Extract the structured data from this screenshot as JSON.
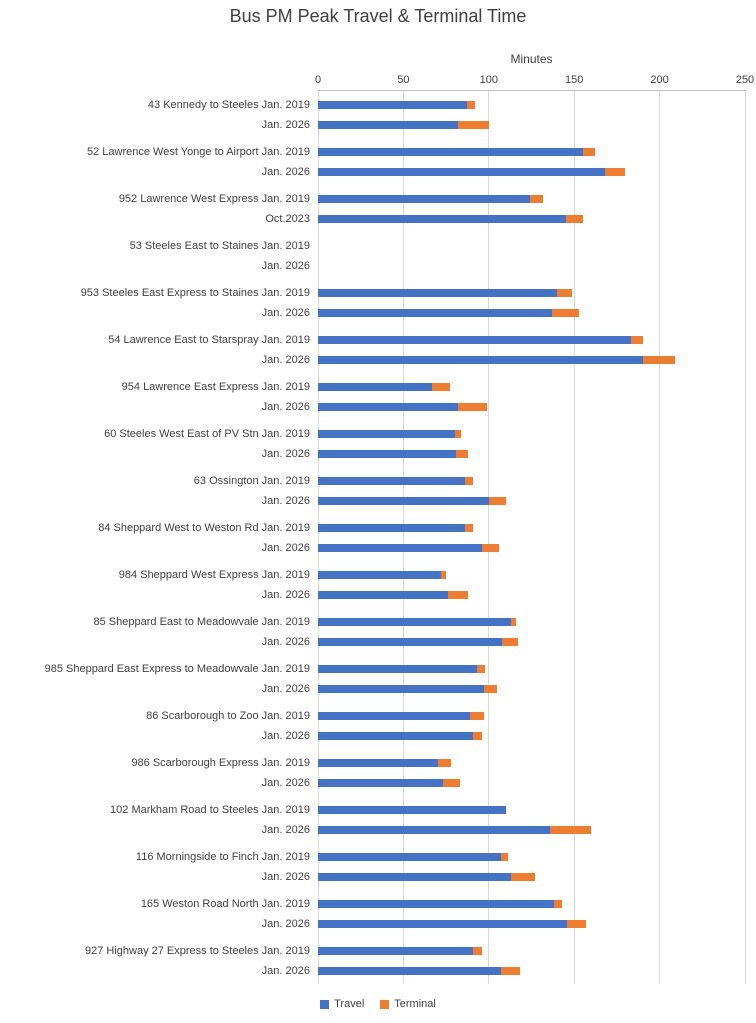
{
  "chart_data": {
    "type": "bar",
    "orientation": "horizontal",
    "stacked": true,
    "title": "Bus PM Peak Travel & Terminal Time",
    "axis_title": "Minutes",
    "xlabel": "Minutes",
    "ylabel": "",
    "xlim": [
      0,
      250
    ],
    "xticks": [
      0,
      50,
      100,
      150,
      200,
      250
    ],
    "grid": true,
    "legend_position": "bottom",
    "legend": [
      {
        "name": "Travel",
        "color": "#4472C4"
      },
      {
        "name": "Terminal",
        "color": "#ED7D31"
      }
    ],
    "groups": [
      {
        "route": "43 Kennedy to Steeles",
        "bars": [
          {
            "period": "Jan. 2019",
            "travel": 87,
            "terminal": 5
          },
          {
            "period": "Jan. 2026",
            "travel": 82,
            "terminal": 18
          }
        ]
      },
      {
        "route": "52 Lawrence West Yonge to Airport",
        "bars": [
          {
            "period": "Jan. 2019",
            "travel": 155,
            "terminal": 7
          },
          {
            "period": "Jan. 2026",
            "travel": 168,
            "terminal": 12
          }
        ]
      },
      {
        "route": "952 Lawrence West Express",
        "bars": [
          {
            "period": "Jan. 2019",
            "travel": 124,
            "terminal": 8
          },
          {
            "period": "Oct.2023",
            "travel": 145,
            "terminal": 10
          }
        ]
      },
      {
        "route": "53 Steeles East to Staines",
        "bars": [
          {
            "period": "Jan. 2019",
            "travel": 0,
            "terminal": 0
          },
          {
            "period": "Jan. 2026",
            "travel": 0,
            "terminal": 0
          }
        ]
      },
      {
        "route": "953 Steeles East Express to Staines",
        "bars": [
          {
            "period": "Jan. 2019",
            "travel": 140,
            "terminal": 9
          },
          {
            "period": "Jan. 2026",
            "travel": 137,
            "terminal": 16
          }
        ]
      },
      {
        "route": "54 Lawrence East to Starspray",
        "bars": [
          {
            "period": "Jan. 2019",
            "travel": 183,
            "terminal": 7
          },
          {
            "period": "Jan. 2026",
            "travel": 190,
            "terminal": 19
          }
        ]
      },
      {
        "route": "954 Lawrence East Express",
        "bars": [
          {
            "period": "Jan. 2019",
            "travel": 67,
            "terminal": 10
          },
          {
            "period": "Jan. 2026",
            "travel": 82,
            "terminal": 17
          }
        ]
      },
      {
        "route": "60 Steeles West East of PV Stn",
        "bars": [
          {
            "period": "Jan. 2019",
            "travel": 80,
            "terminal": 4
          },
          {
            "period": "Jan. 2026",
            "travel": 81,
            "terminal": 7
          }
        ]
      },
      {
        "route": "63 Ossington",
        "bars": [
          {
            "period": "Jan. 2019",
            "travel": 86,
            "terminal": 5
          },
          {
            "period": "Jan. 2026",
            "travel": 100,
            "terminal": 10
          }
        ]
      },
      {
        "route": "84 Sheppard West to Weston Rd",
        "bars": [
          {
            "period": "Jan. 2019",
            "travel": 86,
            "terminal": 5
          },
          {
            "period": "Jan. 2026",
            "travel": 96,
            "terminal": 10
          }
        ]
      },
      {
        "route": "984 Sheppard West Express",
        "bars": [
          {
            "period": "Jan. 2019",
            "travel": 72,
            "terminal": 3
          },
          {
            "period": "Jan. 2026",
            "travel": 76,
            "terminal": 12
          }
        ]
      },
      {
        "route": "85 Sheppard East to Meadowvale",
        "bars": [
          {
            "period": "Jan. 2019",
            "travel": 113,
            "terminal": 3
          },
          {
            "period": "Jan. 2026",
            "travel": 108,
            "terminal": 9
          }
        ]
      },
      {
        "route": "985 Sheppard East Express to Meadowvale",
        "bars": [
          {
            "period": "Jan. 2019",
            "travel": 93,
            "terminal": 5
          },
          {
            "period": "Jan. 2026",
            "travel": 97,
            "terminal": 8
          }
        ]
      },
      {
        "route": "86 Scarborough to Zoo",
        "bars": [
          {
            "period": "Jan. 2019",
            "travel": 89,
            "terminal": 8
          },
          {
            "period": "Jan. 2026",
            "travel": 91,
            "terminal": 5
          }
        ]
      },
      {
        "route": "986 Scarborough Express",
        "bars": [
          {
            "period": "Jan. 2019",
            "travel": 70,
            "terminal": 8
          },
          {
            "period": "Jan. 2026",
            "travel": 73,
            "terminal": 10
          }
        ]
      },
      {
        "route": "102 Markham Road to Steeles",
        "bars": [
          {
            "period": "Jan. 2019",
            "travel": 110,
            "terminal": 0
          },
          {
            "period": "Jan. 2026",
            "travel": 136,
            "terminal": 24
          }
        ]
      },
      {
        "route": "116 Morningside to Finch",
        "bars": [
          {
            "period": "Jan. 2019",
            "travel": 107,
            "terminal": 4
          },
          {
            "period": "Jan. 2026",
            "travel": 113,
            "terminal": 14
          }
        ]
      },
      {
        "route": "165 Weston Road North",
        "bars": [
          {
            "period": "Jan. 2019",
            "travel": 138,
            "terminal": 5
          },
          {
            "period": "Jan. 2026",
            "travel": 146,
            "terminal": 11
          }
        ]
      },
      {
        "route": "927 Highway 27 Express to Steeles",
        "bars": [
          {
            "period": "Jan. 2019",
            "travel": 91,
            "terminal": 5
          },
          {
            "period": "Jan. 2026",
            "travel": 107,
            "terminal": 11
          }
        ]
      }
    ]
  }
}
